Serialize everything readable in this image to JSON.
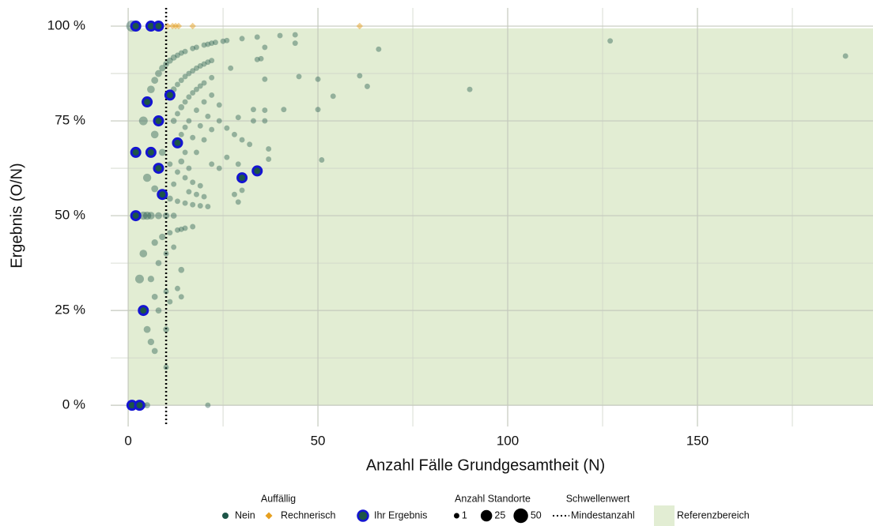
{
  "chart_data": {
    "type": "scatter",
    "x_label": "Anzahl Fälle Grundgesamtheit (N)",
    "y_label": "Ergebnis (O/N)",
    "xlim": [
      -4.6,
      196.25
    ],
    "ylim": [
      -5.6,
      104.8
    ],
    "xticks": [
      0,
      50,
      100,
      150
    ],
    "yticks": [
      {
        "value": 0,
        "label": "0 %"
      },
      {
        "value": 25,
        "label": "25 %"
      },
      {
        "value": 50,
        "label": "50 %"
      },
      {
        "value": 75,
        "label": "75 %"
      },
      {
        "value": 100,
        "label": "100 %"
      }
    ],
    "x_minor_gridlines": [
      25,
      75,
      125,
      175
    ],
    "y_minor_gridlines": [
      12.5,
      37.5,
      62.5,
      87.5
    ],
    "grid": true,
    "legend_position": "bottom",
    "legend_title": "Auffällig",
    "point_opacity": 0.4,
    "series": [
      {
        "name": "Nein",
        "color": "#1d5548",
        "marker": "circle",
        "x": [
          1,
          4,
          3,
          4,
          5,
          6,
          7,
          5,
          6,
          7,
          7,
          8,
          9,
          7,
          6,
          5,
          4,
          7,
          9,
          8,
          9,
          6,
          8,
          7,
          8,
          3,
          4,
          5,
          10,
          10,
          10,
          11,
          10,
          10,
          12,
          11,
          12,
          13,
          14,
          15,
          17,
          14,
          14,
          13,
          10,
          11,
          12,
          13,
          14,
          15,
          17,
          18,
          20,
          21,
          22,
          23,
          25,
          26,
          30,
          34,
          40,
          44,
          44,
          36,
          66,
          127,
          189,
          35,
          34,
          11,
          12,
          13,
          14,
          15,
          16,
          17,
          18,
          19,
          20,
          21,
          22,
          27,
          36,
          45,
          50,
          61,
          63,
          54,
          90,
          12,
          13,
          14,
          15,
          16,
          17,
          18,
          19,
          20,
          22,
          13,
          14,
          15,
          16,
          18,
          20,
          22,
          33,
          36,
          41,
          50,
          14,
          15,
          17,
          19,
          21,
          24,
          29,
          33,
          36,
          15,
          16,
          18,
          20,
          22,
          24,
          26,
          28,
          30,
          32,
          37,
          37,
          51,
          11,
          12,
          13,
          16,
          17,
          19,
          20,
          21,
          18,
          22,
          24,
          26,
          29,
          28,
          29,
          30,
          21,
          11,
          13,
          15,
          17,
          19
        ],
        "values": [
          100,
          75,
          33.3,
          40,
          20,
          16.7,
          14.3,
          60,
          83.3,
          71.4,
          85.7,
          87.5,
          88.9,
          57.1,
          50,
          50,
          50,
          42.9,
          44.4,
          50,
          66.7,
          33.3,
          37.5,
          28.6,
          25,
          0,
          0,
          0,
          10,
          20,
          30,
          27.3,
          40,
          50,
          50,
          45.5,
          41.7,
          46.2,
          46.4,
          46.7,
          47.1,
          35.7,
          28.6,
          30.8,
          90,
          90.9,
          91.7,
          92.3,
          92.9,
          93.3,
          94.1,
          94.4,
          95,
          95.2,
          95.5,
          95.7,
          96,
          96.2,
          96.7,
          97.1,
          97.5,
          97.7,
          95.5,
          94.4,
          93.9,
          96.1,
          92.1,
          91.4,
          91.2,
          81.8,
          83.3,
          84.6,
          85.7,
          86.7,
          87.5,
          88.2,
          88.9,
          89.5,
          90,
          90.5,
          90.9,
          88.9,
          86,
          86.7,
          86,
          86.9,
          84.1,
          81.5,
          83.3,
          75,
          76.9,
          78.6,
          80,
          81.3,
          82.4,
          83.3,
          84.2,
          85,
          86.4,
          69.2,
          71.4,
          73.3,
          75,
          77.8,
          80,
          81.8,
          78,
          77.8,
          78,
          78,
          64.3,
          66.7,
          70.6,
          73.7,
          76.2,
          79.2,
          75.9,
          75,
          75,
          60,
          62.5,
          66.7,
          70,
          72.7,
          75,
          73.1,
          71.4,
          70,
          68.8,
          67.6,
          64.9,
          64.7,
          63.6,
          58.3,
          61.5,
          56.3,
          58.8,
          57.9,
          55,
          52.4,
          55.6,
          63.6,
          62.5,
          65.4,
          63.6,
          55.6,
          53.6,
          56.7,
          0,
          54.5,
          53.8,
          53.3,
          52.9,
          52.6
        ],
        "sizes": [
          25,
          10,
          10,
          6,
          4,
          3,
          2,
          8,
          6,
          6,
          4,
          4,
          3,
          4,
          6,
          8,
          8,
          3,
          3,
          4,
          4,
          3,
          2,
          2,
          2,
          4,
          2,
          2,
          1,
          2,
          1,
          1,
          1,
          3,
          2,
          1,
          1,
          1,
          1,
          1,
          1,
          2,
          1,
          1,
          2,
          2,
          2,
          1,
          1,
          1,
          1,
          1,
          1,
          1,
          1,
          1,
          1,
          1,
          1,
          1,
          1,
          1,
          1,
          1,
          1,
          1,
          1,
          1,
          1,
          2,
          2,
          1,
          1,
          1,
          1,
          1,
          1,
          1,
          1,
          1,
          1,
          1,
          1,
          1,
          1,
          1,
          1,
          1,
          1,
          2,
          1,
          2,
          1,
          1,
          1,
          1,
          1,
          1,
          1,
          1,
          1,
          1,
          1,
          1,
          1,
          1,
          1,
          1,
          1,
          1,
          2,
          1,
          1,
          1,
          1,
          1,
          1,
          1,
          1,
          1,
          1,
          1,
          1,
          1,
          1,
          1,
          1,
          1,
          1,
          1,
          1,
          1,
          1,
          1,
          1,
          1,
          1,
          1,
          1,
          1,
          1,
          1,
          1,
          1,
          1,
          1,
          1,
          1,
          1,
          2,
          1,
          1,
          1,
          1
        ]
      },
      {
        "name": "Rechnerisch",
        "color": "#e6a020",
        "marker": "diamond",
        "x": [
          10.4,
          11.7,
          12.5,
          13.3,
          17,
          61
        ],
        "values": [
          100,
          100,
          100,
          100,
          100,
          100
        ],
        "sizes": [
          1,
          1,
          1,
          1,
          1,
          1
        ]
      },
      {
        "name": "Ihr Ergebnis",
        "color": "#1d5548",
        "stroke": "#1414d2",
        "marker": "ring",
        "x": [
          2,
          6,
          8,
          2,
          1,
          3,
          4,
          5,
          8,
          11,
          13,
          2,
          6,
          8,
          9,
          30,
          34
        ],
        "values": [
          100,
          100,
          100,
          50,
          0,
          0,
          25,
          80,
          75,
          81.8,
          69.2,
          66.7,
          66.7,
          62.5,
          55.6,
          60,
          61.8
        ],
        "sizes": [
          10,
          10,
          10,
          10,
          10,
          10,
          10,
          10,
          10,
          10,
          10,
          10,
          10,
          10,
          10,
          10,
          10
        ]
      }
    ],
    "size_legend": {
      "title": "Anzahl Standorte",
      "values": [
        1,
        25,
        50
      ]
    },
    "threshold": {
      "title": "Schwellenwert",
      "name": "Mindestanzahl",
      "x": 10
    },
    "reference_area": {
      "name": "Referenzbereich",
      "color": "#e2edd3",
      "x_start": 0,
      "y": [
        0,
        99.4
      ]
    }
  }
}
